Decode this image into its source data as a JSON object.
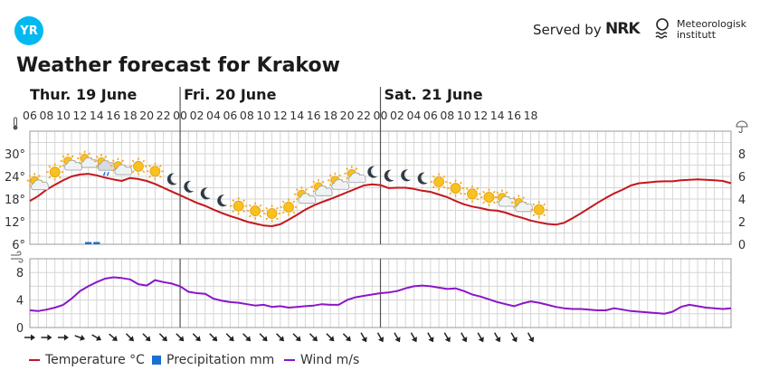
{
  "header": {
    "logo_text": "YR",
    "served_by": "Served by",
    "nrk": "NRK",
    "met_line1": "Meteorologisk",
    "met_line2": "institutt"
  },
  "title": "Weather forecast for Krakow",
  "colors": {
    "temperature": "#c4161c",
    "precipitation": "#1a6fd1",
    "wind": "#8a16c9",
    "grid": "#d6d6d6"
  },
  "chart_data": {
    "type": "line",
    "days": [
      {
        "label": "Thur. 19 June",
        "start_hour_index": 0
      },
      {
        "label": "Fri. 20 June",
        "start_hour_index": 9
      },
      {
        "label": "Sat. 21 June",
        "start_hour_index": 21
      }
    ],
    "hour_labels": [
      "06",
      "08",
      "10",
      "12",
      "14",
      "16",
      "18",
      "20",
      "22",
      "00",
      "02",
      "04",
      "06",
      "08",
      "10",
      "12",
      "14",
      "16",
      "18",
      "20",
      "22",
      "00",
      "02",
      "04",
      "06",
      "08",
      "10",
      "12",
      "14",
      "16",
      "18"
    ],
    "x_hours": [
      6,
      7,
      8,
      9,
      10,
      11,
      12,
      13,
      14,
      15,
      16,
      17,
      18,
      19,
      20,
      21,
      22,
      23,
      24,
      25,
      26,
      27,
      28,
      29,
      30,
      31,
      32,
      33,
      34,
      35,
      36,
      37,
      38,
      39,
      40,
      41,
      42,
      43,
      44,
      45,
      46,
      47,
      48,
      49,
      50,
      51,
      52,
      53,
      54,
      55,
      56,
      57,
      58,
      59,
      60,
      61,
      62,
      63,
      64,
      65,
      66,
      67,
      68,
      69,
      70,
      71,
      72,
      73,
      74,
      75,
      76,
      77,
      78,
      79,
      80,
      81,
      82,
      83,
      84,
      85,
      86,
      87,
      88,
      89,
      90
    ],
    "temperature": {
      "name": "Temperature °C",
      "unit": "°C",
      "ylim": [
        6,
        36
      ],
      "ticks": [
        6,
        12,
        18,
        24,
        30
      ],
      "tick_labels": [
        "6°",
        "12°",
        "18°",
        "24°",
        "30°"
      ],
      "values": [
        17.5,
        18.8,
        20.5,
        21.8,
        23.0,
        24.0,
        24.5,
        24.7,
        24.3,
        23.7,
        23.2,
        22.8,
        23.6,
        23.3,
        22.8,
        22.0,
        21.0,
        20.0,
        19.0,
        18.0,
        17.0,
        16.2,
        15.2,
        14.3,
        13.5,
        12.8,
        12.0,
        11.5,
        11.0,
        10.8,
        11.3,
        12.5,
        13.8,
        15.2,
        16.3,
        17.2,
        18.0,
        18.9,
        19.8,
        20.7,
        21.6,
        21.9,
        21.7,
        20.9,
        21.0,
        21.0,
        20.7,
        20.2,
        19.9,
        19.2,
        18.5,
        17.5,
        16.6,
        16.0,
        15.6,
        15.1,
        14.9,
        14.4,
        13.6,
        13.0,
        12.3,
        11.8,
        11.4,
        11.2,
        11.7,
        12.9,
        14.2,
        15.6,
        17.0,
        18.3,
        19.5,
        20.5,
        21.6,
        22.2,
        22.4,
        22.6,
        22.7,
        22.7,
        23.0,
        23.1,
        23.2,
        23.1,
        23.0,
        22.8,
        22.2
      ]
    },
    "precipitation": {
      "name": "Precipitation mm",
      "unit": "mm",
      "ylim": [
        0,
        10
      ],
      "ticks": [
        0,
        2,
        4,
        6,
        8
      ],
      "tick_labels": [
        "0",
        "2",
        "4",
        "6",
        "8"
      ],
      "bars": [
        {
          "x": 13,
          "value": 0.2
        },
        {
          "x": 14,
          "value": 0.2
        }
      ]
    },
    "wind": {
      "name": "Wind m/s",
      "unit": "m/s",
      "ylim": [
        0,
        10
      ],
      "ticks": [
        0,
        4,
        8
      ],
      "tick_labels": [
        "0",
        "4",
        "8"
      ],
      "values": [
        2.5,
        2.4,
        2.6,
        2.9,
        3.3,
        4.2,
        5.3,
        6.0,
        6.6,
        7.1,
        7.3,
        7.2,
        7.0,
        6.3,
        6.1,
        6.9,
        6.6,
        6.4,
        6.0,
        5.2,
        5.0,
        4.9,
        4.2,
        3.9,
        3.7,
        3.6,
        3.4,
        3.2,
        3.3,
        3.0,
        3.1,
        2.9,
        3.0,
        3.1,
        3.2,
        3.4,
        3.3,
        3.3,
        4.0,
        4.4,
        4.6,
        4.8,
        5.0,
        5.1,
        5.3,
        5.7,
        6.0,
        6.1,
        6.0,
        5.8,
        5.6,
        5.7,
        5.3,
        4.8,
        4.5,
        4.1,
        3.7,
        3.4,
        3.1,
        3.5,
        3.8,
        3.6,
        3.3,
        3.0,
        2.8,
        2.7,
        2.7,
        2.6,
        2.5,
        2.5,
        2.8,
        2.6,
        2.4,
        2.3,
        2.2,
        2.1,
        2.0,
        2.3,
        3.0,
        3.3,
        3.1,
        2.9,
        2.8,
        2.7,
        2.8,
        3.0,
        3.0,
        2.6,
        2.3
      ]
    },
    "symbols": {
      "x": [
        7,
        8,
        9,
        10,
        11,
        12,
        13,
        14,
        15,
        16,
        17,
        18,
        19,
        20,
        21,
        22,
        23,
        24,
        25,
        26,
        27,
        28,
        29,
        30,
        31,
        32,
        33,
        34,
        35,
        36,
        37,
        38,
        39,
        40,
        41,
        42,
        43,
        44,
        45,
        46,
        47,
        48,
        49,
        50,
        51,
        52,
        53,
        54,
        55,
        56,
        57,
        58,
        59,
        60,
        61,
        62,
        63,
        64,
        65,
        66,
        67,
        68,
        69,
        70,
        71,
        72,
        73,
        74,
        75,
        76,
        77,
        78,
        79,
        80,
        81,
        82,
        83,
        84,
        85,
        86,
        87,
        88,
        89,
        90
      ],
      "hourly_every": 1,
      "items": [
        {
          "x": 7,
          "icon": "partly-cloudy-sun-icon"
        },
        {
          "x": 8,
          "icon": "sun-icon"
        },
        {
          "x": 9,
          "icon": "partly-cloudy-sun-icon"
        },
        {
          "x": 10,
          "icon": "partly-cloudy-sun-icon"
        },
        {
          "x": 11,
          "icon": "rain-cloud-icon"
        },
        {
          "x": 12,
          "icon": "partly-cloudy-sun-icon"
        },
        {
          "x": 13,
          "icon": "sun-icon"
        },
        {
          "x": 14,
          "icon": "sun-icon"
        },
        {
          "x": 15,
          "icon": "moon-icon"
        },
        {
          "x": 16,
          "icon": "moon-icon"
        },
        {
          "x": 17,
          "icon": "moon-icon"
        },
        {
          "x": 18,
          "icon": "moon-icon"
        },
        {
          "x": 19,
          "icon": "sun-icon"
        },
        {
          "x": 20,
          "icon": "sun-icon"
        },
        {
          "x": 21,
          "icon": "sun-icon"
        },
        {
          "x": 22,
          "icon": "sun-icon"
        },
        {
          "x": 23,
          "icon": "partly-cloudy-sun-icon"
        },
        {
          "x": 24,
          "icon": "partly-cloudy-sun-icon"
        },
        {
          "x": 25,
          "icon": "partly-cloudy-sun-icon"
        },
        {
          "x": 26,
          "icon": "partly-cloudy-sun-icon"
        },
        {
          "x": 27,
          "icon": "moon-icon"
        },
        {
          "x": 28,
          "icon": "moon-icon"
        },
        {
          "x": 29,
          "icon": "moon-icon"
        },
        {
          "x": 30,
          "icon": "moon-icon"
        },
        {
          "x": 31,
          "icon": "sun-icon"
        },
        {
          "x": 32,
          "icon": "sun-icon"
        },
        {
          "x": 33,
          "icon": "sun-icon"
        },
        {
          "x": 34,
          "icon": "sun-icon"
        },
        {
          "x": 35,
          "icon": "partly-cloudy-sun-icon"
        },
        {
          "x": 36,
          "icon": "partly-cloudy-sun-icon"
        },
        {
          "x": 37,
          "icon": "sun-icon"
        }
      ]
    },
    "wind_direction_deg": [
      90,
      90,
      90,
      110,
      120,
      130,
      135,
      135,
      135,
      135,
      135,
      135,
      135,
      135,
      135,
      135,
      135,
      135,
      135,
      135,
      150,
      150,
      150,
      150,
      150,
      150,
      150,
      150,
      150,
      150,
      150,
      150,
      150,
      150,
      150,
      150,
      150,
      150,
      150,
      150,
      150,
      150,
      150,
      150,
      150,
      150,
      150,
      150,
      150,
      150,
      150,
      150,
      150,
      150,
      150,
      150,
      150,
      150,
      150,
      150,
      150,
      150,
      150,
      150,
      150,
      150,
      150,
      150,
      150,
      150,
      150,
      150,
      150,
      150,
      150,
      150,
      150,
      150,
      150,
      150,
      150,
      150,
      150,
      150,
      150
    ],
    "wind_arrows": [
      {
        "x": 6,
        "deg": 90
      },
      {
        "x": 7,
        "deg": 90
      },
      {
        "x": 8,
        "deg": 90
      },
      {
        "x": 9,
        "deg": 110
      },
      {
        "x": 10,
        "deg": 120
      },
      {
        "x": 11,
        "deg": 130
      },
      {
        "x": 12,
        "deg": 135
      },
      {
        "x": 13,
        "deg": 135
      },
      {
        "x": 14,
        "deg": 135
      },
      {
        "x": 15,
        "deg": 135
      },
      {
        "x": 16,
        "deg": 135
      },
      {
        "x": 17,
        "deg": 135
      },
      {
        "x": 18,
        "deg": 135
      },
      {
        "x": 19,
        "deg": 135
      },
      {
        "x": 20,
        "deg": 135
      },
      {
        "x": 21,
        "deg": 135
      },
      {
        "x": 22,
        "deg": 135
      },
      {
        "x": 23,
        "deg": 135
      },
      {
        "x": 24,
        "deg": 135
      },
      {
        "x": 25,
        "deg": 135
      },
      {
        "x": 26,
        "deg": 150
      },
      {
        "x": 27,
        "deg": 150
      },
      {
        "x": 28,
        "deg": 150
      },
      {
        "x": 29,
        "deg": 150
      },
      {
        "x": 30,
        "deg": 150
      },
      {
        "x": 31,
        "deg": 150
      },
      {
        "x": 32,
        "deg": 150
      },
      {
        "x": 33,
        "deg": 150
      },
      {
        "x": 34,
        "deg": 150
      },
      {
        "x": 35,
        "deg": 150
      },
      {
        "x": 36,
        "deg": 150
      }
    ],
    "legend": [
      "Temperature °C",
      "Precipitation mm",
      "Wind m/s"
    ],
    "grid": true,
    "legend_position": "bottom-left"
  }
}
